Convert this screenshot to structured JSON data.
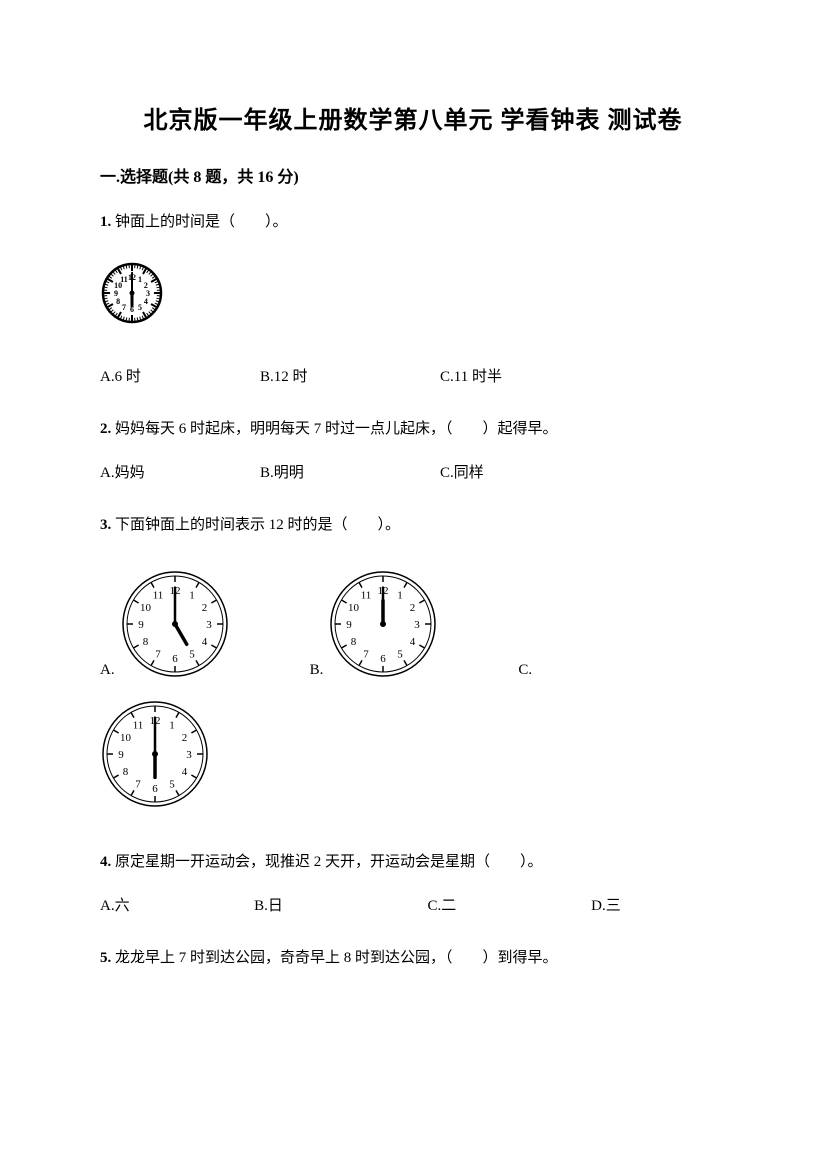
{
  "title": "北京版一年级上册数学第八单元 学看钟表 测试卷",
  "section": "一.选择题(共 8 题，共 16 分)",
  "q1": {
    "num": "1.",
    "text": "钟面上的时间是（　　）。",
    "clock": {
      "hour_angle": 180,
      "minute_angle": 0,
      "size": 64,
      "style": "tick"
    },
    "options": {
      "a": "A.6 时",
      "b": "B.12 时",
      "c": "C.11 时半"
    }
  },
  "q2": {
    "num": "2.",
    "text": "妈妈每天 6 时起床，明明每天 7 时过一点儿起床，（　　）起得早。",
    "options": {
      "a": "A.妈妈",
      "b": "B.明明",
      "c": "C.同样"
    }
  },
  "q3": {
    "num": "3.",
    "text": "下面钟面上的时间表示 12 时的是（　　）。",
    "clocks": {
      "a": {
        "hour_angle": 150,
        "minute_angle": 0,
        "size": 110,
        "style": "number"
      },
      "b": {
        "hour_angle": 0,
        "minute_angle": 0,
        "size": 110,
        "style": "number"
      },
      "c": {
        "hour_angle": 180,
        "minute_angle": 0,
        "size": 110,
        "style": "number"
      }
    }
  },
  "q4": {
    "num": "4.",
    "text": "原定星期一开运动会，现推迟 2 天开，开运动会是星期（　　）。",
    "options": {
      "a": "A.六",
      "b": "B.日",
      "c": "C.二",
      "d": "D.三"
    }
  },
  "q5": {
    "num": "5.",
    "text": "龙龙早上 7 时到达公园，奇奇早上 8 时到达公园，（　　）到得早。"
  }
}
